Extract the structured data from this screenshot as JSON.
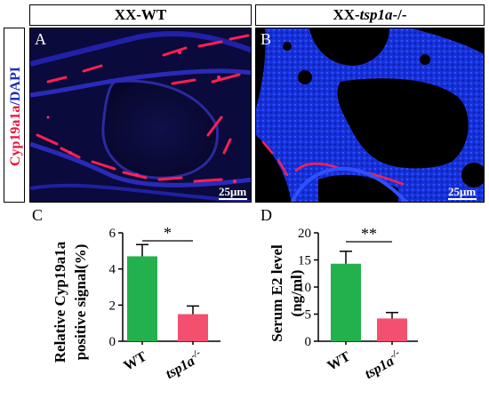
{
  "headers": {
    "wt": "XX-WT",
    "mut_prefix": "XX-",
    "mut_gene": "tsp1a",
    "mut_suffix": "-/-"
  },
  "side_label": {
    "part1": "Cyp19a1a",
    "part2": "/DAPI",
    "color1": "#e8143c",
    "color2": "#1f2db8"
  },
  "panels": {
    "a_label": "A",
    "b_label": "B",
    "scale_a": "25μm",
    "scale_b": "25μm"
  },
  "chart_data": [
    {
      "panel_letter": "C",
      "type": "bar",
      "categories": [
        "WT",
        "tsp1a-/-"
      ],
      "category_labels": {
        "wt": "WT",
        "mut_gene": "tsp1a",
        "mut_sup": "-/-"
      },
      "values": [
        4.7,
        1.5
      ],
      "errors": [
        0.65,
        0.45
      ],
      "colors": [
        "#22b14c",
        "#f2506e"
      ],
      "ylabel_line1": "Relative Cyp19a1a",
      "ylabel_line2": "positive  signal(%)",
      "ylim": [
        0,
        6
      ],
      "yticks": [
        0,
        2,
        4,
        6
      ],
      "significance": "*"
    },
    {
      "panel_letter": "D",
      "type": "bar",
      "categories": [
        "WT",
        "tsp1a-/-"
      ],
      "category_labels": {
        "wt": "WT",
        "mut_gene": "tsp1a",
        "mut_sup": "-/-"
      },
      "values": [
        14.3,
        4.2
      ],
      "errors": [
        2.3,
        1.1
      ],
      "colors": [
        "#22b14c",
        "#f2506e"
      ],
      "ylabel_line1": "Serum E2 level",
      "ylabel_line2": "(ng/ml)",
      "ylim": [
        0,
        20
      ],
      "yticks": [
        0,
        5,
        10,
        15,
        20
      ],
      "significance": "**"
    }
  ]
}
